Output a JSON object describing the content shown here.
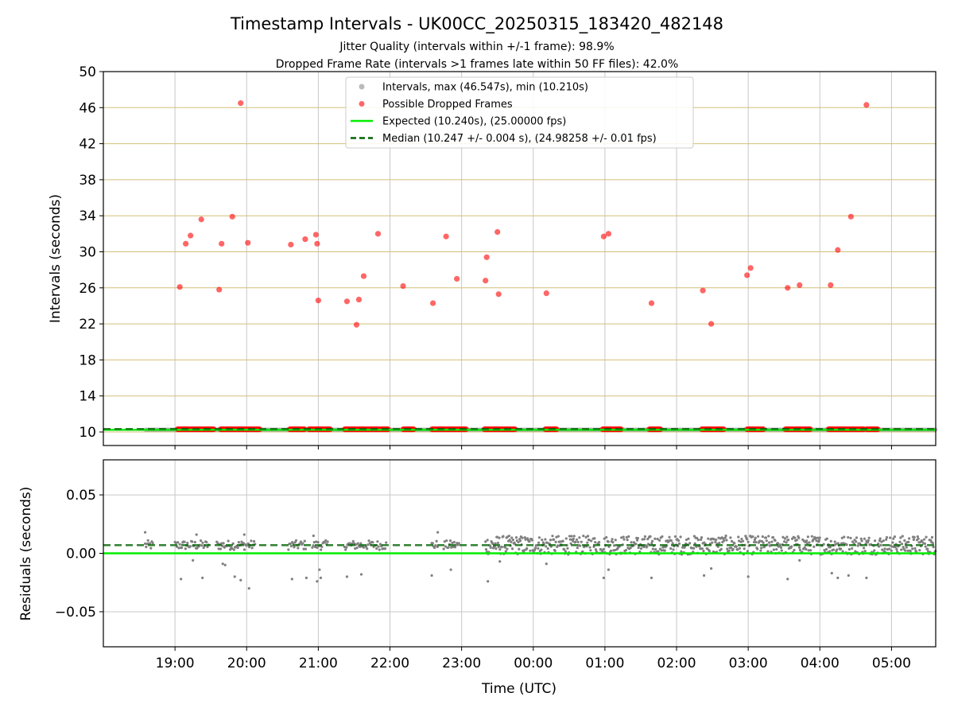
{
  "title": "Timestamp Intervals - UK00CC_20250315_183420_482148",
  "subtitle_lines": [
    "Jitter Quality (intervals within +/-1 frame): 98.9%",
    "Dropped Frame Rate (intervals >1 frames late within 50 FF files): 42.0%"
  ],
  "colors": {
    "expected": "#00ee00",
    "median": "#006400",
    "interval": "#a9a9a9",
    "dropped": "#ff0000",
    "residual": "#808080",
    "hgrid_top": "#d4bf7a",
    "grid": "#c8c8c8"
  },
  "chart_data": [
    {
      "type": "scatter",
      "panel": "intervals",
      "ylabel": "Intervals (seconds)",
      "xlabel": "",
      "ylim": [
        8.5,
        50
      ],
      "yticks": [
        10,
        14,
        18,
        22,
        26,
        30,
        34,
        38,
        42,
        46,
        50
      ],
      "grid": "horizontal gold gridlines, vertical grey gridlines",
      "legend_placement": "top-center",
      "legend": [
        {
          "label": "Intervals, max (46.547s), min (10.210s)",
          "kind": "interval"
        },
        {
          "label": "Possible Dropped Frames",
          "kind": "dropped"
        },
        {
          "label": "Expected (10.240s), (25.00000 fps)",
          "kind": "expected"
        },
        {
          "label": "Median (10.247 +/- 0.004 s), (24.98258 +/- 0.01 fps)",
          "kind": "median"
        }
      ],
      "expected": 10.24,
      "median": 10.247,
      "intervals_band": {
        "x_start": "18:35",
        "x_end": "05:37",
        "y": 10.25
      },
      "dropped_frame_runs": [
        {
          "start": "19:02",
          "end": "19:33"
        },
        {
          "start": "19:38",
          "end": "20:11"
        },
        {
          "start": "20:36",
          "end": "20:49"
        },
        {
          "start": "20:52",
          "end": "21:10"
        },
        {
          "start": "21:22",
          "end": "21:59"
        },
        {
          "start": "22:11",
          "end": "22:20"
        },
        {
          "start": "22:35",
          "end": "23:04"
        },
        {
          "start": "23:19",
          "end": "23:45"
        },
        {
          "start": "00:10",
          "end": "00:20"
        },
        {
          "start": "00:58",
          "end": "01:14"
        },
        {
          "start": "01:37",
          "end": "01:47"
        },
        {
          "start": "02:21",
          "end": "02:40"
        },
        {
          "start": "02:59",
          "end": "03:13"
        },
        {
          "start": "03:31",
          "end": "03:52"
        },
        {
          "start": "04:07",
          "end": "04:37"
        },
        {
          "start": "04:39",
          "end": "04:49"
        }
      ],
      "dropped_points": [
        {
          "x": "19:04",
          "y": 26.1
        },
        {
          "x": "19:09",
          "y": 30.9
        },
        {
          "x": "19:13",
          "y": 31.8
        },
        {
          "x": "19:22",
          "y": 33.6
        },
        {
          "x": "19:37",
          "y": 25.8
        },
        {
          "x": "19:39",
          "y": 30.9
        },
        {
          "x": "19:48",
          "y": 33.9
        },
        {
          "x": "19:55",
          "y": 46.5
        },
        {
          "x": "20:01",
          "y": 31.0
        },
        {
          "x": "20:37",
          "y": 30.8
        },
        {
          "x": "20:49",
          "y": 31.4
        },
        {
          "x": "20:58",
          "y": 31.9
        },
        {
          "x": "20:59",
          "y": 30.9
        },
        {
          "x": "21:00",
          "y": 24.6
        },
        {
          "x": "21:24",
          "y": 24.5
        },
        {
          "x": "21:32",
          "y": 21.9
        },
        {
          "x": "21:34",
          "y": 24.7
        },
        {
          "x": "21:38",
          "y": 27.3
        },
        {
          "x": "21:50",
          "y": 32.0
        },
        {
          "x": "22:11",
          "y": 26.2
        },
        {
          "x": "22:36",
          "y": 24.3
        },
        {
          "x": "22:47",
          "y": 31.7
        },
        {
          "x": "22:56",
          "y": 27.0
        },
        {
          "x": "23:20",
          "y": 26.8
        },
        {
          "x": "23:21",
          "y": 29.4
        },
        {
          "x": "23:30",
          "y": 32.2
        },
        {
          "x": "23:31",
          "y": 25.3
        },
        {
          "x": "00:11",
          "y": 25.4
        },
        {
          "x": "00:59",
          "y": 31.7
        },
        {
          "x": "01:03",
          "y": 32.0
        },
        {
          "x": "01:39",
          "y": 24.3
        },
        {
          "x": "02:22",
          "y": 25.7
        },
        {
          "x": "02:29",
          "y": 22.0
        },
        {
          "x": "02:59",
          "y": 27.4
        },
        {
          "x": "03:02",
          "y": 28.2
        },
        {
          "x": "03:33",
          "y": 26.0
        },
        {
          "x": "03:43",
          "y": 26.3
        },
        {
          "x": "04:09",
          "y": 26.3
        },
        {
          "x": "04:15",
          "y": 30.2
        },
        {
          "x": "04:26",
          "y": 33.9
        },
        {
          "x": "04:39",
          "y": 46.3
        }
      ]
    },
    {
      "type": "scatter",
      "panel": "residuals",
      "ylabel": "Residuals (seconds)",
      "xlabel": "Time (UTC)",
      "ylim": [
        -0.08,
        0.08
      ],
      "yticks": [
        -0.05,
        0.0,
        0.05
      ],
      "ytick_labels": [
        "−0.05",
        "0.00",
        "0.05"
      ],
      "xlim": [
        "18:00",
        "05:37"
      ],
      "xticks": [
        "19:00",
        "20:00",
        "21:00",
        "22:00",
        "23:00",
        "00:00",
        "01:00",
        "02:00",
        "03:00",
        "04:00",
        "05:00"
      ],
      "grid": "grey gridlines",
      "expected_line": 0.0,
      "median_line": 0.007,
      "residual_clusters": [
        {
          "start": "18:35",
          "end": "18:42",
          "center": 0.007,
          "spread": 0.004
        },
        {
          "start": "19:00",
          "end": "19:28",
          "center": 0.007,
          "spread": 0.004
        },
        {
          "start": "19:35",
          "end": "20:07",
          "center": 0.007,
          "spread": 0.004
        },
        {
          "start": "20:35",
          "end": "20:50",
          "center": 0.007,
          "spread": 0.004
        },
        {
          "start": "20:55",
          "end": "21:08",
          "center": 0.007,
          "spread": 0.004
        },
        {
          "start": "21:22",
          "end": "21:38",
          "center": 0.007,
          "spread": 0.004
        },
        {
          "start": "21:40",
          "end": "21:57",
          "center": 0.007,
          "spread": 0.004
        },
        {
          "start": "22:35",
          "end": "22:40",
          "center": 0.007,
          "spread": 0.004
        },
        {
          "start": "22:45",
          "end": "22:58",
          "center": 0.007,
          "spread": 0.004
        },
        {
          "start": "23:20",
          "end": "05:37",
          "center": 0.007,
          "spread": 0.008
        }
      ],
      "residual_outliers": [
        {
          "x": "18:35",
          "y": 0.018
        },
        {
          "x": "19:05",
          "y": -0.022
        },
        {
          "x": "19:15",
          "y": -0.006
        },
        {
          "x": "19:18",
          "y": 0.016
        },
        {
          "x": "19:23",
          "y": -0.021
        },
        {
          "x": "19:40",
          "y": -0.009
        },
        {
          "x": "19:42",
          "y": -0.01
        },
        {
          "x": "19:50",
          "y": -0.02
        },
        {
          "x": "19:55",
          "y": -0.023
        },
        {
          "x": "19:58",
          "y": 0.016
        },
        {
          "x": "20:02",
          "y": -0.03
        },
        {
          "x": "20:38",
          "y": -0.022
        },
        {
          "x": "20:50",
          "y": -0.021
        },
        {
          "x": "20:56",
          "y": 0.015
        },
        {
          "x": "20:59",
          "y": -0.024
        },
        {
          "x": "21:01",
          "y": -0.014
        },
        {
          "x": "21:02",
          "y": -0.021
        },
        {
          "x": "21:24",
          "y": -0.02
        },
        {
          "x": "21:36",
          "y": -0.018
        },
        {
          "x": "22:35",
          "y": -0.019
        },
        {
          "x": "22:40",
          "y": 0.018
        },
        {
          "x": "22:51",
          "y": -0.014
        },
        {
          "x": "23:22",
          "y": -0.024
        },
        {
          "x": "23:32",
          "y": -0.007
        },
        {
          "x": "00:11",
          "y": -0.009
        },
        {
          "x": "00:59",
          "y": -0.021
        },
        {
          "x": "01:03",
          "y": -0.014
        },
        {
          "x": "01:39",
          "y": -0.021
        },
        {
          "x": "02:23",
          "y": -0.019
        },
        {
          "x": "02:29",
          "y": -0.013
        },
        {
          "x": "03:00",
          "y": -0.02
        },
        {
          "x": "03:33",
          "y": -0.022
        },
        {
          "x": "03:43",
          "y": -0.006
        },
        {
          "x": "04:10",
          "y": -0.017
        },
        {
          "x": "04:15",
          "y": -0.021
        },
        {
          "x": "04:24",
          "y": -0.019
        },
        {
          "x": "04:39",
          "y": -0.021
        }
      ]
    }
  ]
}
